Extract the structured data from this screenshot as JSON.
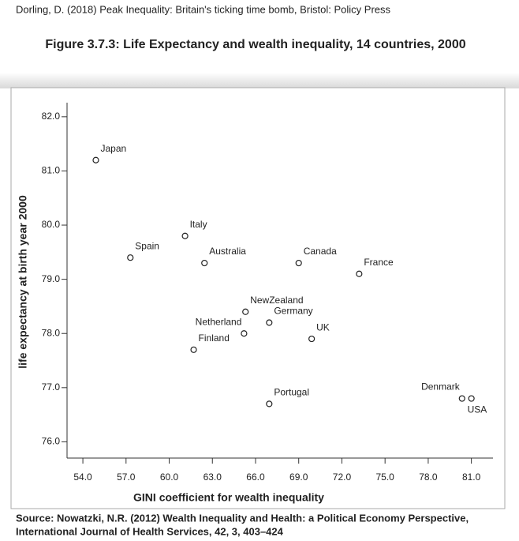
{
  "citation": "Dorling, D. (2018) Peak Inequality: Britain's ticking time bomb, Bristol: Policy Press",
  "figure_title": "Figure 3.7.3: Life Expectancy and wealth inequality, 14 countries, 2000",
  "chart_data": {
    "type": "scatter",
    "xlabel": "GINI coefficient for wealth inequality",
    "ylabel": "life expectancy at birth year 2000",
    "labels": [
      "Japan",
      "Spain",
      "Italy",
      "Australia",
      "Canada",
      "France",
      "NewZealand",
      "Germany",
      "Netherland",
      "UK",
      "Finland",
      "Portugal",
      "Denmark",
      "USA"
    ],
    "x": [
      54.9,
      57.3,
      61.1,
      62.45,
      69.0,
      73.2,
      65.3,
      66.95,
      65.2,
      69.9,
      61.7,
      66.95,
      80.35,
      81.0
    ],
    "values": [
      81.2,
      79.4,
      79.8,
      79.3,
      79.3,
      79.1,
      78.4,
      78.2,
      78.0,
      77.9,
      77.7,
      76.7,
      76.8,
      76.8
    ],
    "color": "#222222",
    "xlim": [
      52.9,
      82.5
    ],
    "ylim": [
      75.7,
      82.26
    ],
    "xticks": [
      {
        "value": 54,
        "label": "54.0"
      },
      {
        "value": 57,
        "label": "57.0"
      },
      {
        "value": 60,
        "label": "60.0"
      },
      {
        "value": 63,
        "label": "63.0"
      },
      {
        "value": 66,
        "label": "66.0"
      },
      {
        "value": 69,
        "label": "69.0"
      },
      {
        "value": 72,
        "label": "72.0"
      },
      {
        "value": 75,
        "label": "75.0"
      },
      {
        "value": 78,
        "label": "78.0"
      },
      {
        "value": 81,
        "label": "81.0"
      }
    ],
    "yticks": [
      {
        "value": 76,
        "label": "76.0"
      },
      {
        "value": 77,
        "label": "77.0"
      },
      {
        "value": 78,
        "label": "78.0"
      },
      {
        "value": 79,
        "label": "79.0"
      },
      {
        "value": 80,
        "label": "80.0"
      },
      {
        "value": 81,
        "label": "81.0"
      },
      {
        "value": 82,
        "label": "82.0"
      }
    ],
    "grid": false
  },
  "source": [
    "Source: Nowatzki, N.R. (2012) Wealth Inequality and Health: a Political Economy Perspective,",
    "International Journal of Health Services, 42, 3, 403–424"
  ]
}
